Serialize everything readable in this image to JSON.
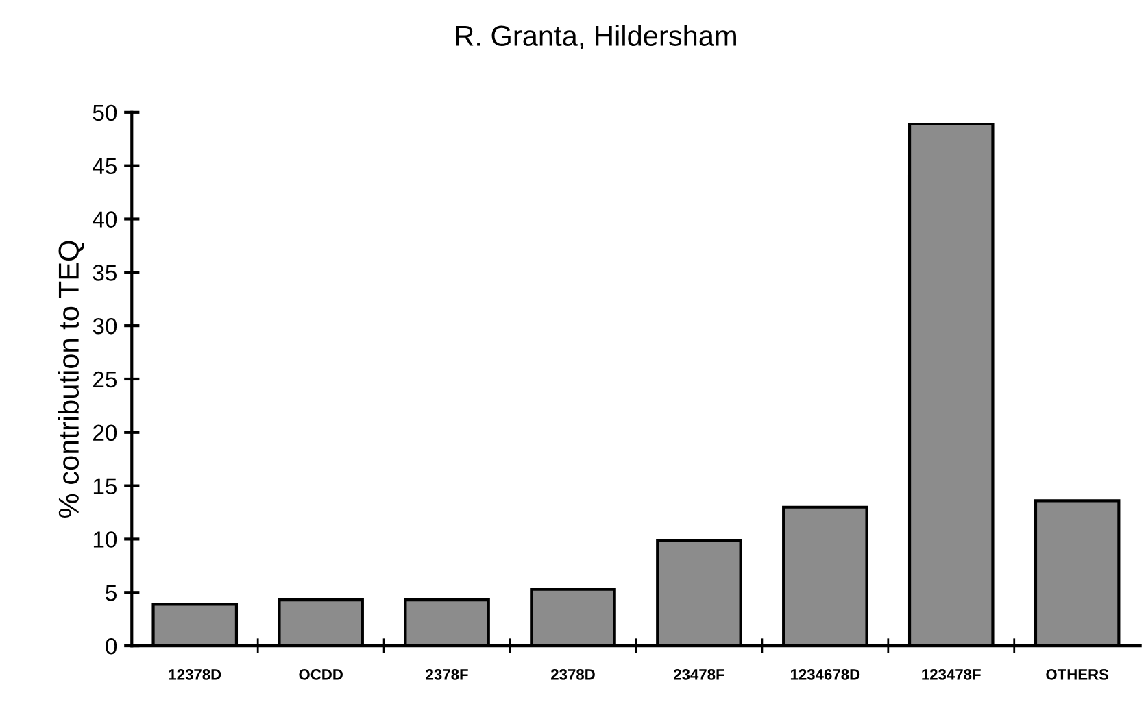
{
  "chart_data": {
    "type": "bar",
    "title": "R. Granta, Hildersham",
    "ylabel": "% contribution to TEQ",
    "categories": [
      "12378D",
      "OCDD",
      "2378F",
      "2378D",
      "23478F",
      "1234678D",
      "123478F",
      "OTHERS"
    ],
    "values": [
      3.9,
      4.3,
      4.3,
      5.3,
      9.9,
      13.0,
      48.9,
      13.6
    ],
    "color": "#8c8c8c",
    "ylim": [
      0,
      50
    ],
    "yticks": [
      0,
      5,
      10,
      15,
      20,
      25,
      30,
      35,
      40,
      45,
      50
    ],
    "grid": false
  }
}
